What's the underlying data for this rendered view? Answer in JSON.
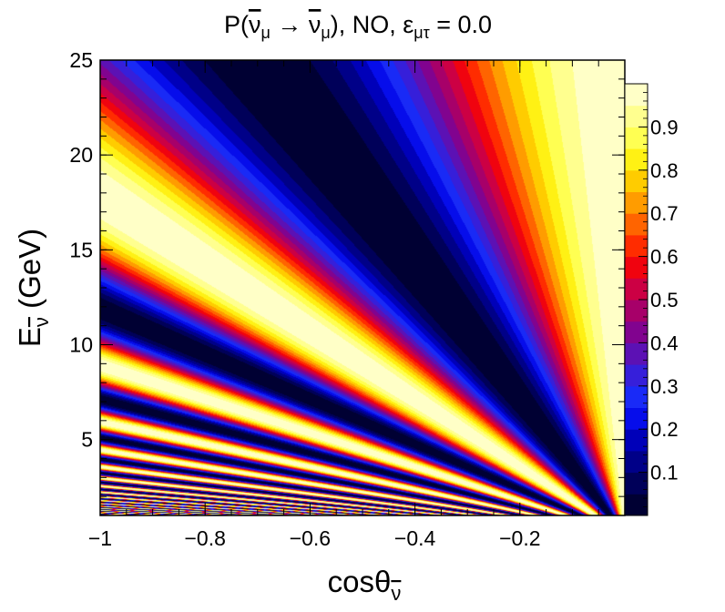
{
  "chart_data": {
    "type": "heatmap",
    "title": "P(ν̄μ → ν̄μ), NO, εμτ =  0.0",
    "title_parts": {
      "prefix": "P(",
      "nu": "ν",
      "mu": "μ",
      "arrow": "→",
      "tail": "), NO, ",
      "eps": "ε",
      "eps_sub": "μτ",
      "value": "=  0.0"
    },
    "xlabel_parts": {
      "main": "cosθ",
      "sub": "ν"
    },
    "ylabel_parts": {
      "main": "E",
      "sub": "ν",
      "unit": " (GeV)"
    },
    "xlim": [
      -1,
      0
    ],
    "ylim": [
      1,
      25
    ],
    "xticks": [
      -1,
      -0.8,
      -0.6,
      -0.4,
      -0.2
    ],
    "xtick_labels": [
      "−1",
      "−0.8",
      "−0.6",
      "−0.4",
      "−0.2"
    ],
    "yticks": [
      5,
      10,
      15,
      20,
      25
    ],
    "ytick_labels": [
      "5",
      "10",
      "15",
      "20",
      "25"
    ],
    "colorbar": {
      "range": [
        0,
        1
      ],
      "ticks": [
        0.1,
        0.2,
        0.3,
        0.4,
        0.5,
        0.6,
        0.7,
        0.8,
        0.9
      ],
      "tick_labels": [
        "0.1",
        "0.2",
        "0.3",
        "0.4",
        "0.5",
        "0.6",
        "0.7",
        "0.8",
        "0.9"
      ],
      "levels": 20,
      "colors": [
        "#000033",
        "#000055",
        "#000080",
        "#0000aa",
        "#0000dd",
        "#1020ff",
        "#2233ee",
        "#4411cc",
        "#6611aa",
        "#880088",
        "#aa0066",
        "#cc0044",
        "#ee0011",
        "#ff2200",
        "#ff5500",
        "#ff8800",
        "#ffbb00",
        "#ffdd00",
        "#ffff22",
        "#ffff66",
        "#ffff99",
        "#ffffcc",
        "#fffff0"
      ]
    },
    "function": "P = 1 - sin^2(K * (-cos theta) / E), survival probability; oscillation frequency K approx 56 GeV"
  }
}
